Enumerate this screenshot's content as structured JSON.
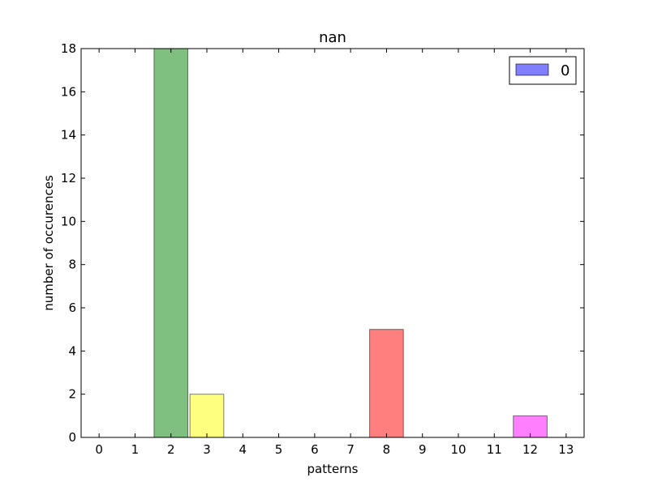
{
  "chart_data": {
    "type": "bar",
    "title": "nan",
    "xlabel": "patterns",
    "ylabel": "number of occurences",
    "categories": [
      "0",
      "1",
      "2",
      "3",
      "4",
      "5",
      "6",
      "7",
      "8",
      "9",
      "10",
      "11",
      "12",
      "13"
    ],
    "values": [
      0,
      0,
      18,
      2,
      0,
      0,
      0,
      0,
      5,
      0,
      0,
      0,
      1,
      0
    ],
    "bar_colors": [
      "#0000ff",
      "#0000ff",
      "#008000",
      "#ffff00",
      "#0000ff",
      "#0000ff",
      "#0000ff",
      "#0000ff",
      "#ff0000",
      "#0000ff",
      "#0000ff",
      "#0000ff",
      "#ff00ff",
      "#0000ff"
    ],
    "bar_opacity": 0.5,
    "ylim": [
      0,
      18
    ],
    "yticks": [
      0,
      2,
      4,
      6,
      8,
      10,
      12,
      14,
      16,
      18
    ],
    "xlim": [
      -0.5,
      13.5
    ],
    "grid": false,
    "legend": {
      "placement": "top-right",
      "entries": [
        {
          "label": "0",
          "color": "#0000ff"
        }
      ]
    }
  }
}
